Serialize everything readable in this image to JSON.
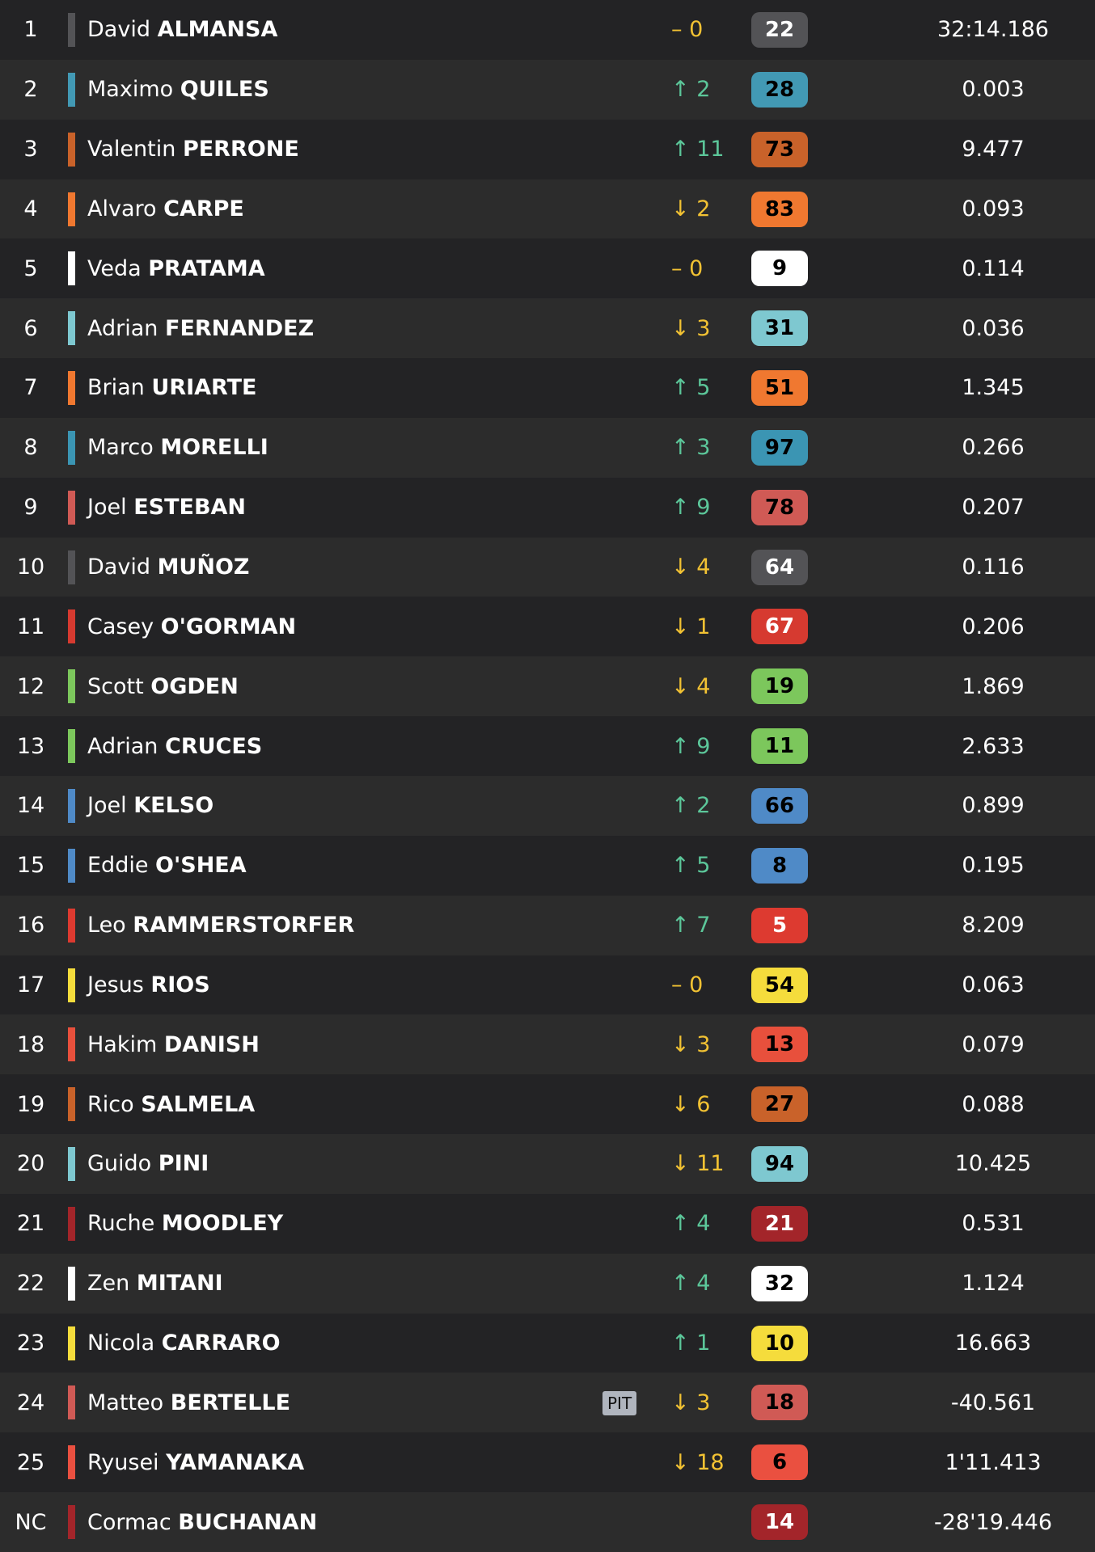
{
  "rows": [
    {
      "pos": "1",
      "first": "David",
      "last": "ALMANSA",
      "dir": "same",
      "change": "0",
      "number": "22",
      "color": "#535356",
      "text": "#fff",
      "time": "32:14.186"
    },
    {
      "pos": "2",
      "first": "Maximo",
      "last": "QUILES",
      "dir": "up",
      "change": "2",
      "number": "28",
      "color": "#4299b4",
      "text": "#000",
      "time": "0.003"
    },
    {
      "pos": "3",
      "first": "Valentin",
      "last": "PERRONE",
      "dir": "up",
      "change": "11",
      "number": "73",
      "color": "#c9622a",
      "text": "#000",
      "time": "9.477"
    },
    {
      "pos": "4",
      "first": "Alvaro",
      "last": "CARPE",
      "dir": "down",
      "change": "2",
      "number": "83",
      "color": "#f07830",
      "text": "#000",
      "time": "0.093"
    },
    {
      "pos": "5",
      "first": "Veda",
      "last": "PRATAMA",
      "dir": "same",
      "change": "0",
      "number": "9",
      "color": "#ffffff",
      "text": "#000",
      "time": "0.114"
    },
    {
      "pos": "6",
      "first": "Adrian",
      "last": "FERNANDEZ",
      "dir": "down",
      "change": "3",
      "number": "31",
      "color": "#7ec8d0",
      "text": "#000",
      "time": "0.036"
    },
    {
      "pos": "7",
      "first": "Brian",
      "last": "URIARTE",
      "dir": "up",
      "change": "5",
      "number": "51",
      "color": "#f07830",
      "text": "#000",
      "time": "1.345"
    },
    {
      "pos": "8",
      "first": "Marco",
      "last": "MORELLI",
      "dir": "up",
      "change": "3",
      "number": "97",
      "color": "#3b95b3",
      "text": "#000",
      "time": "0.266"
    },
    {
      "pos": "9",
      "first": "Joel",
      "last": "ESTEBAN",
      "dir": "up",
      "change": "9",
      "number": "78",
      "color": "#d05a55",
      "text": "#000",
      "time": "0.207"
    },
    {
      "pos": "10",
      "first": "David",
      "last": "MUÑOZ",
      "dir": "down",
      "change": "4",
      "number": "64",
      "color": "#535356",
      "text": "#fff",
      "time": "0.116"
    },
    {
      "pos": "11",
      "first": "Casey",
      "last": "O'GORMAN",
      "dir": "down",
      "change": "1",
      "number": "67",
      "color": "#d63a30",
      "text": "#fff",
      "time": "0.206"
    },
    {
      "pos": "12",
      "first": "Scott",
      "last": "OGDEN",
      "dir": "down",
      "change": "4",
      "number": "19",
      "color": "#7cc75c",
      "text": "#000",
      "time": "1.869"
    },
    {
      "pos": "13",
      "first": "Adrian",
      "last": "CRUCES",
      "dir": "up",
      "change": "9",
      "number": "11",
      "color": "#7cc75c",
      "text": "#000",
      "time": "2.633"
    },
    {
      "pos": "14",
      "first": "Joel",
      "last": "KELSO",
      "dir": "up",
      "change": "2",
      "number": "66",
      "color": "#4f8ac7",
      "text": "#000",
      "time": "0.899"
    },
    {
      "pos": "15",
      "first": "Eddie",
      "last": "O'SHEA",
      "dir": "up",
      "change": "5",
      "number": "8",
      "color": "#4f8ac7",
      "text": "#000",
      "time": "0.195"
    },
    {
      "pos": "16",
      "first": "Leo",
      "last": "RAMMERSTORFER",
      "dir": "up",
      "change": "7",
      "number": "5",
      "color": "#dd3a30",
      "text": "#fff",
      "time": "8.209"
    },
    {
      "pos": "17",
      "first": "Jesus",
      "last": "RIOS",
      "dir": "same",
      "change": "0",
      "number": "54",
      "color": "#f5dc3c",
      "text": "#000",
      "time": "0.063"
    },
    {
      "pos": "18",
      "first": "Hakim",
      "last": "DANISH",
      "dir": "down",
      "change": "3",
      "number": "13",
      "color": "#e8503c",
      "text": "#000",
      "time": "0.079"
    },
    {
      "pos": "19",
      "first": "Rico",
      "last": "SALMELA",
      "dir": "down",
      "change": "6",
      "number": "27",
      "color": "#c9622a",
      "text": "#000",
      "time": "0.088"
    },
    {
      "pos": "20",
      "first": "Guido",
      "last": "PINI",
      "dir": "down",
      "change": "11",
      "number": "94",
      "color": "#7ec8d0",
      "text": "#000",
      "time": "10.425"
    },
    {
      "pos": "21",
      "first": "Ruche",
      "last": "MOODLEY",
      "dir": "up",
      "change": "4",
      "number": "21",
      "color": "#a3252a",
      "text": "#fff",
      "time": "0.531"
    },
    {
      "pos": "22",
      "first": "Zen",
      "last": "MITANI",
      "dir": "up",
      "change": "4",
      "number": "32",
      "color": "#ffffff",
      "text": "#000",
      "time": "1.124"
    },
    {
      "pos": "23",
      "first": "Nicola",
      "last": "CARRARO",
      "dir": "up",
      "change": "1",
      "number": "10",
      "color": "#f5dc3c",
      "text": "#000",
      "time": "16.663"
    },
    {
      "pos": "24",
      "first": "Matteo",
      "last": "BERTELLE",
      "pit": "PIT",
      "dir": "down",
      "change": "3",
      "number": "18",
      "color": "#d05a55",
      "text": "#000",
      "time": "-40.561"
    },
    {
      "pos": "25",
      "first": "Ryusei",
      "last": "YAMANAKA",
      "dir": "down",
      "change": "18",
      "number": "6",
      "color": "#ea5040",
      "text": "#000",
      "time": "1'11.413"
    },
    {
      "pos": "NC",
      "first": "Cormac",
      "last": "BUCHANAN",
      "dir": "none",
      "change": "",
      "number": "14",
      "color": "#a3252a",
      "text": "#fff",
      "time": "-28'19.446"
    }
  ],
  "icons": {
    "up": "↑",
    "down": "↓",
    "same": "–"
  }
}
